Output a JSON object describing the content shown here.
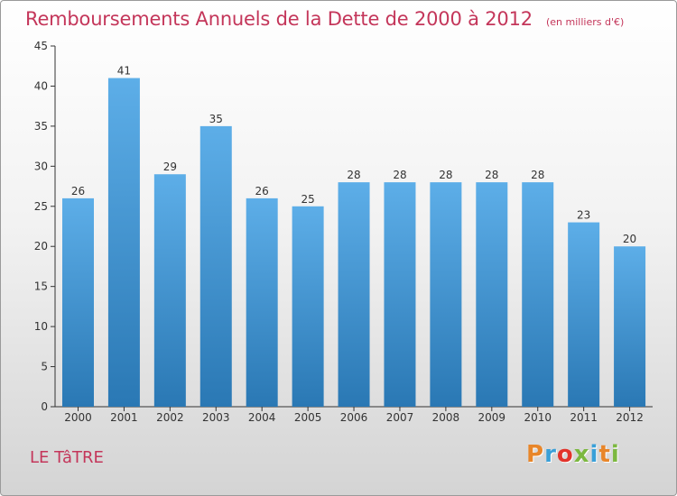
{
  "header": {
    "title": "Remboursements Annuels de la Dette de 2000 à 2012",
    "subtitle": "(en milliers d'€)"
  },
  "footer": {
    "commune": "LE TâTRE",
    "logo_text": "Proxiti",
    "logo_colors": [
      "#e8862a",
      "#3aa0d8",
      "#e2332b",
      "#7cb840",
      "#3aa0d8",
      "#e8862a",
      "#7cb840"
    ]
  },
  "chart_data": {
    "type": "bar",
    "categories": [
      "2000",
      "2001",
      "2002",
      "2003",
      "2004",
      "2005",
      "2006",
      "2007",
      "2008",
      "2009",
      "2010",
      "2011",
      "2012"
    ],
    "values": [
      26,
      41,
      29,
      35,
      26,
      25,
      28,
      28,
      28,
      28,
      28,
      23,
      20
    ],
    "ylim": [
      0,
      45
    ],
    "yticks": [
      0,
      5,
      10,
      15,
      20,
      25,
      30,
      35,
      40,
      45
    ],
    "grid": false,
    "data_labels": true,
    "colors": {
      "bar_top": "#5daee8",
      "bar_bottom": "#2a78b4",
      "label": "#333333",
      "axis": "#333333"
    }
  }
}
